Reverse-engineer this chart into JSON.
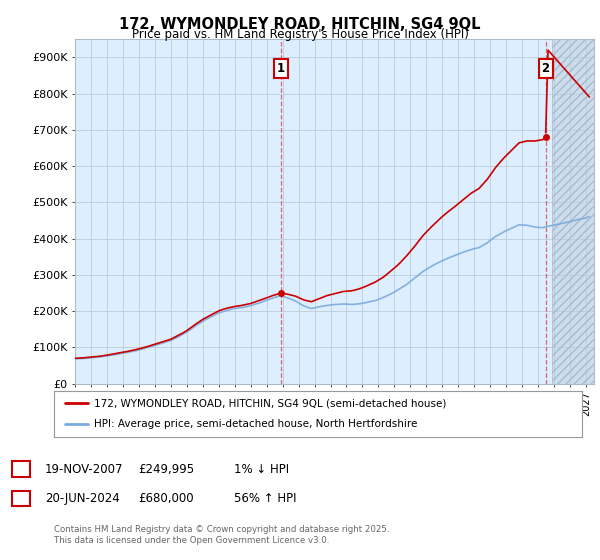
{
  "title1": "172, WYMONDLEY ROAD, HITCHIN, SG4 9QL",
  "title2": "Price paid vs. HM Land Registry's House Price Index (HPI)",
  "ylim": [
    0,
    950000
  ],
  "xlim_start": 1995.0,
  "xlim_end": 2027.5,
  "hpi_color": "#7aaadd",
  "price_color": "#cc0000",
  "dashed_color": "#dd6666",
  "plot_bg_color": "#ddeeff",
  "hatch_bg_color": "#ccddee",
  "marker1_year": 2007.9,
  "marker1_value": 249995,
  "marker2_year": 2024.47,
  "marker2_value": 680000,
  "legend_label1": "172, WYMONDLEY ROAD, HITCHIN, SG4 9QL (semi-detached house)",
  "legend_label2": "HPI: Average price, semi-detached house, North Hertfordshire",
  "table_row1": [
    "1",
    "19-NOV-2007",
    "£249,995",
    "1% ↓ HPI"
  ],
  "table_row2": [
    "2",
    "20-JUN-2024",
    "£680,000",
    "56% ↑ HPI"
  ],
  "footer": "Contains HM Land Registry data © Crown copyright and database right 2025.\nThis data is licensed under the Open Government Licence v3.0.",
  "bg_color": "#ffffff",
  "grid_color": "#bbccdd"
}
